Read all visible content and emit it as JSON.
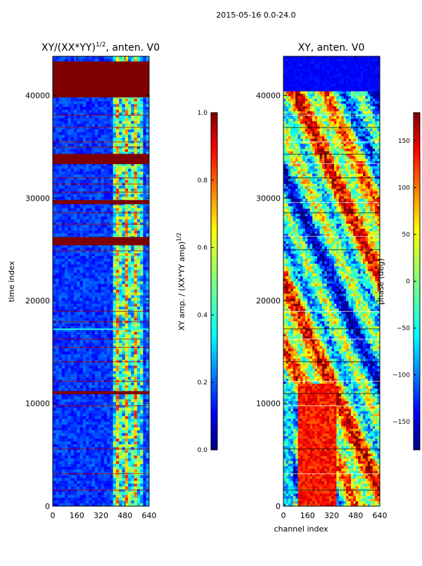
{
  "figure": {
    "suptitle": "2015-05-16 0.0-24.0"
  },
  "colors": {
    "jet": [
      "#00007f",
      "#0000ff",
      "#007fff",
      "#00ffff",
      "#7fff7f",
      "#ffff00",
      "#ff7f00",
      "#ff0000",
      "#7f0000"
    ],
    "frame": "#000000",
    "background": "#ffffff"
  },
  "chart_data": [
    {
      "type": "heatmap",
      "title_main": "XY/(XX*YY)",
      "title_sup": "1/2",
      "title_tail": ", anten. V0",
      "xlabel": "",
      "ylabel": "time index",
      "xlim": [
        0,
        640
      ],
      "ylim": [
        0,
        43800
      ],
      "xticks": [
        "0",
        "160",
        "320",
        "480",
        "640"
      ],
      "yticks": [
        "0",
        "10000",
        "20000",
        "30000",
        "40000"
      ],
      "description_bands": [
        {
          "from": 39800,
          "to": 43300,
          "value": 1.0
        },
        {
          "from": 33300,
          "to": 34300,
          "value": 1.0
        },
        {
          "from": 25400,
          "to": 26200,
          "value": 1.0
        },
        {
          "from": 29400,
          "to": 29800,
          "value": 1.0
        },
        {
          "from": 10900,
          "to": 11200,
          "value": 1.0
        }
      ],
      "colorbar": {
        "label": "XY amp. / (XX*YY amp)",
        "label_sup": "1/2",
        "range": [
          0.0,
          1.0
        ],
        "ticks": [
          "0.0",
          "0.2",
          "0.4",
          "0.6",
          "0.8",
          "1.0"
        ]
      }
    },
    {
      "type": "heatmap",
      "title": "XY, anten. V0",
      "xlabel": "channel index",
      "ylabel": "",
      "xlim": [
        0,
        640
      ],
      "ylim": [
        0,
        43800
      ],
      "xticks": [
        "0",
        "160",
        "320",
        "480",
        "640"
      ],
      "yticks": [
        "0",
        "10000",
        "20000",
        "30000",
        "40000"
      ],
      "colorbar": {
        "label": "phase (deg)",
        "range": [
          -180,
          180
        ],
        "ticks": [
          "−150",
          "−100",
          "−50",
          "0",
          "50",
          "100",
          "150"
        ]
      }
    }
  ]
}
